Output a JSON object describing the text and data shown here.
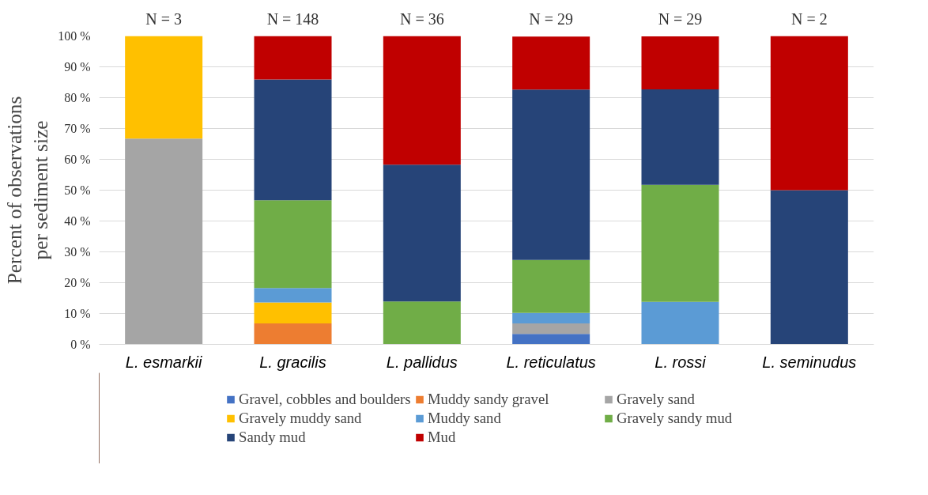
{
  "chart_data": {
    "type": "bar",
    "stacked": true,
    "ylabel": "Percent of observations per sediment size",
    "categories": [
      "L. esmarkii",
      "L. gracilis",
      "L. pallidus",
      "L. reticulatus",
      "L. rossi",
      "L. seminudus"
    ],
    "series": [
      {
        "name": "Gravel, cobbles and boulders",
        "color": "#4472c4",
        "values": [
          null,
          null,
          null,
          3.4,
          null,
          null
        ]
      },
      {
        "name": "Muddy sandy gravel",
        "color": "#ed7d31",
        "values": [
          null,
          6.8,
          null,
          null,
          null,
          null
        ]
      },
      {
        "name": "Gravely sand",
        "color": "#a5a5a5",
        "values": [
          66.7,
          null,
          null,
          3.4,
          null,
          null
        ]
      },
      {
        "name": "Gravely muddy sand",
        "color": "#ffc000",
        "values": [
          33.3,
          6.8,
          null,
          null,
          null,
          null
        ]
      },
      {
        "name": "Muddy sand",
        "color": "#5b9bd5",
        "values": [
          null,
          4.7,
          null,
          3.4,
          13.8,
          null
        ]
      },
      {
        "name": "Gravely sandy mud",
        "color": "#70ad47",
        "values": [
          null,
          28.4,
          13.9,
          17.2,
          37.9,
          null
        ]
      },
      {
        "name": "Sandy mud",
        "color": "#264478",
        "values": [
          null,
          39.2,
          44.4,
          55.2,
          31.0,
          50
        ]
      },
      {
        "name": "Mud",
        "color": "#c00000",
        "values": [
          null,
          14.2,
          41.7,
          17.2,
          17.2,
          50
        ]
      }
    ],
    "ylim": [
      0,
      100
    ],
    "yticks": [
      {
        "value": 0,
        "label": "0 %"
      },
      {
        "value": 10,
        "label": "10 %"
      },
      {
        "value": 20,
        "label": "20 %"
      },
      {
        "value": 30,
        "label": "30 %"
      },
      {
        "value": 40,
        "label": "40 %"
      },
      {
        "value": 50,
        "label": "50 %"
      },
      {
        "value": 60,
        "label": "60 %"
      },
      {
        "value": 70,
        "label": "70 %"
      },
      {
        "value": 80,
        "label": "80 %"
      },
      {
        "value": 90,
        "label": "90 %"
      },
      {
        "value": 100,
        "label": "100 %"
      }
    ],
    "grid": "y",
    "legend": "bottom",
    "annotations": [
      "N = 3",
      "N = 148",
      "N = 36",
      "N = 29",
      "N = 29",
      "N = 2"
    ]
  }
}
